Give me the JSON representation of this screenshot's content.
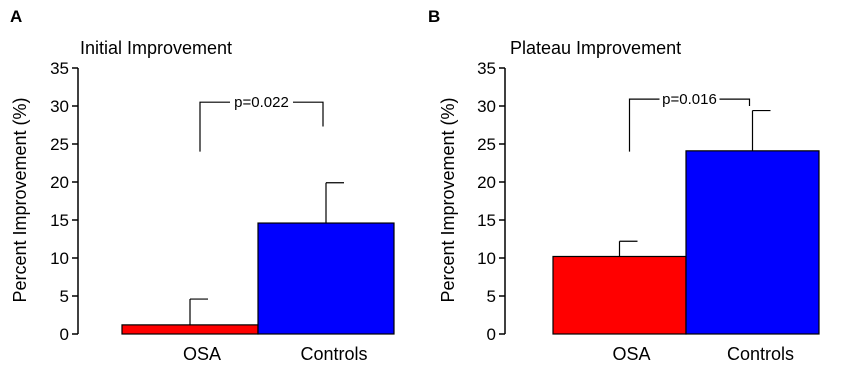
{
  "chart_data": [
    {
      "type": "bar",
      "panel_label": "A",
      "title": "Initial Improvement",
      "ylabel": "Percent Improvement (%)",
      "xlabel": "",
      "categories": [
        "OSA",
        "Controls"
      ],
      "values": [
        1.2,
        14.6
      ],
      "errors": [
        3.4,
        5.3
      ],
      "colors": [
        "#ff0000",
        "#0000ff"
      ],
      "ylim": [
        0,
        35
      ],
      "yticks": [
        "0",
        "5",
        "10",
        "15",
        "20",
        "25",
        "30",
        "35"
      ],
      "significance": {
        "label": "p=0.022",
        "from": "OSA",
        "to": "Controls",
        "bracket_level": 30.5,
        "left_drop": 24,
        "right_drop": 27.3
      },
      "grid": false,
      "legend": "none"
    },
    {
      "type": "bar",
      "panel_label": "B",
      "title": "Plateau Improvement",
      "ylabel": "Percent Improvement (%)",
      "xlabel": "",
      "categories": [
        "OSA",
        "Controls"
      ],
      "values": [
        10.2,
        24.1
      ],
      "errors": [
        2.0,
        5.3
      ],
      "colors": [
        "#ff0000",
        "#0000ff"
      ],
      "ylim": [
        0,
        35
      ],
      "yticks": [
        "0",
        "5",
        "10",
        "15",
        "20",
        "25",
        "30",
        "35"
      ],
      "significance": {
        "label": "p=0.016",
        "from": "OSA",
        "to": "Controls",
        "bracket_level": 30.9,
        "left_drop": 24,
        "right_drop": 30.0
      },
      "grid": false,
      "legend": "none"
    }
  ]
}
